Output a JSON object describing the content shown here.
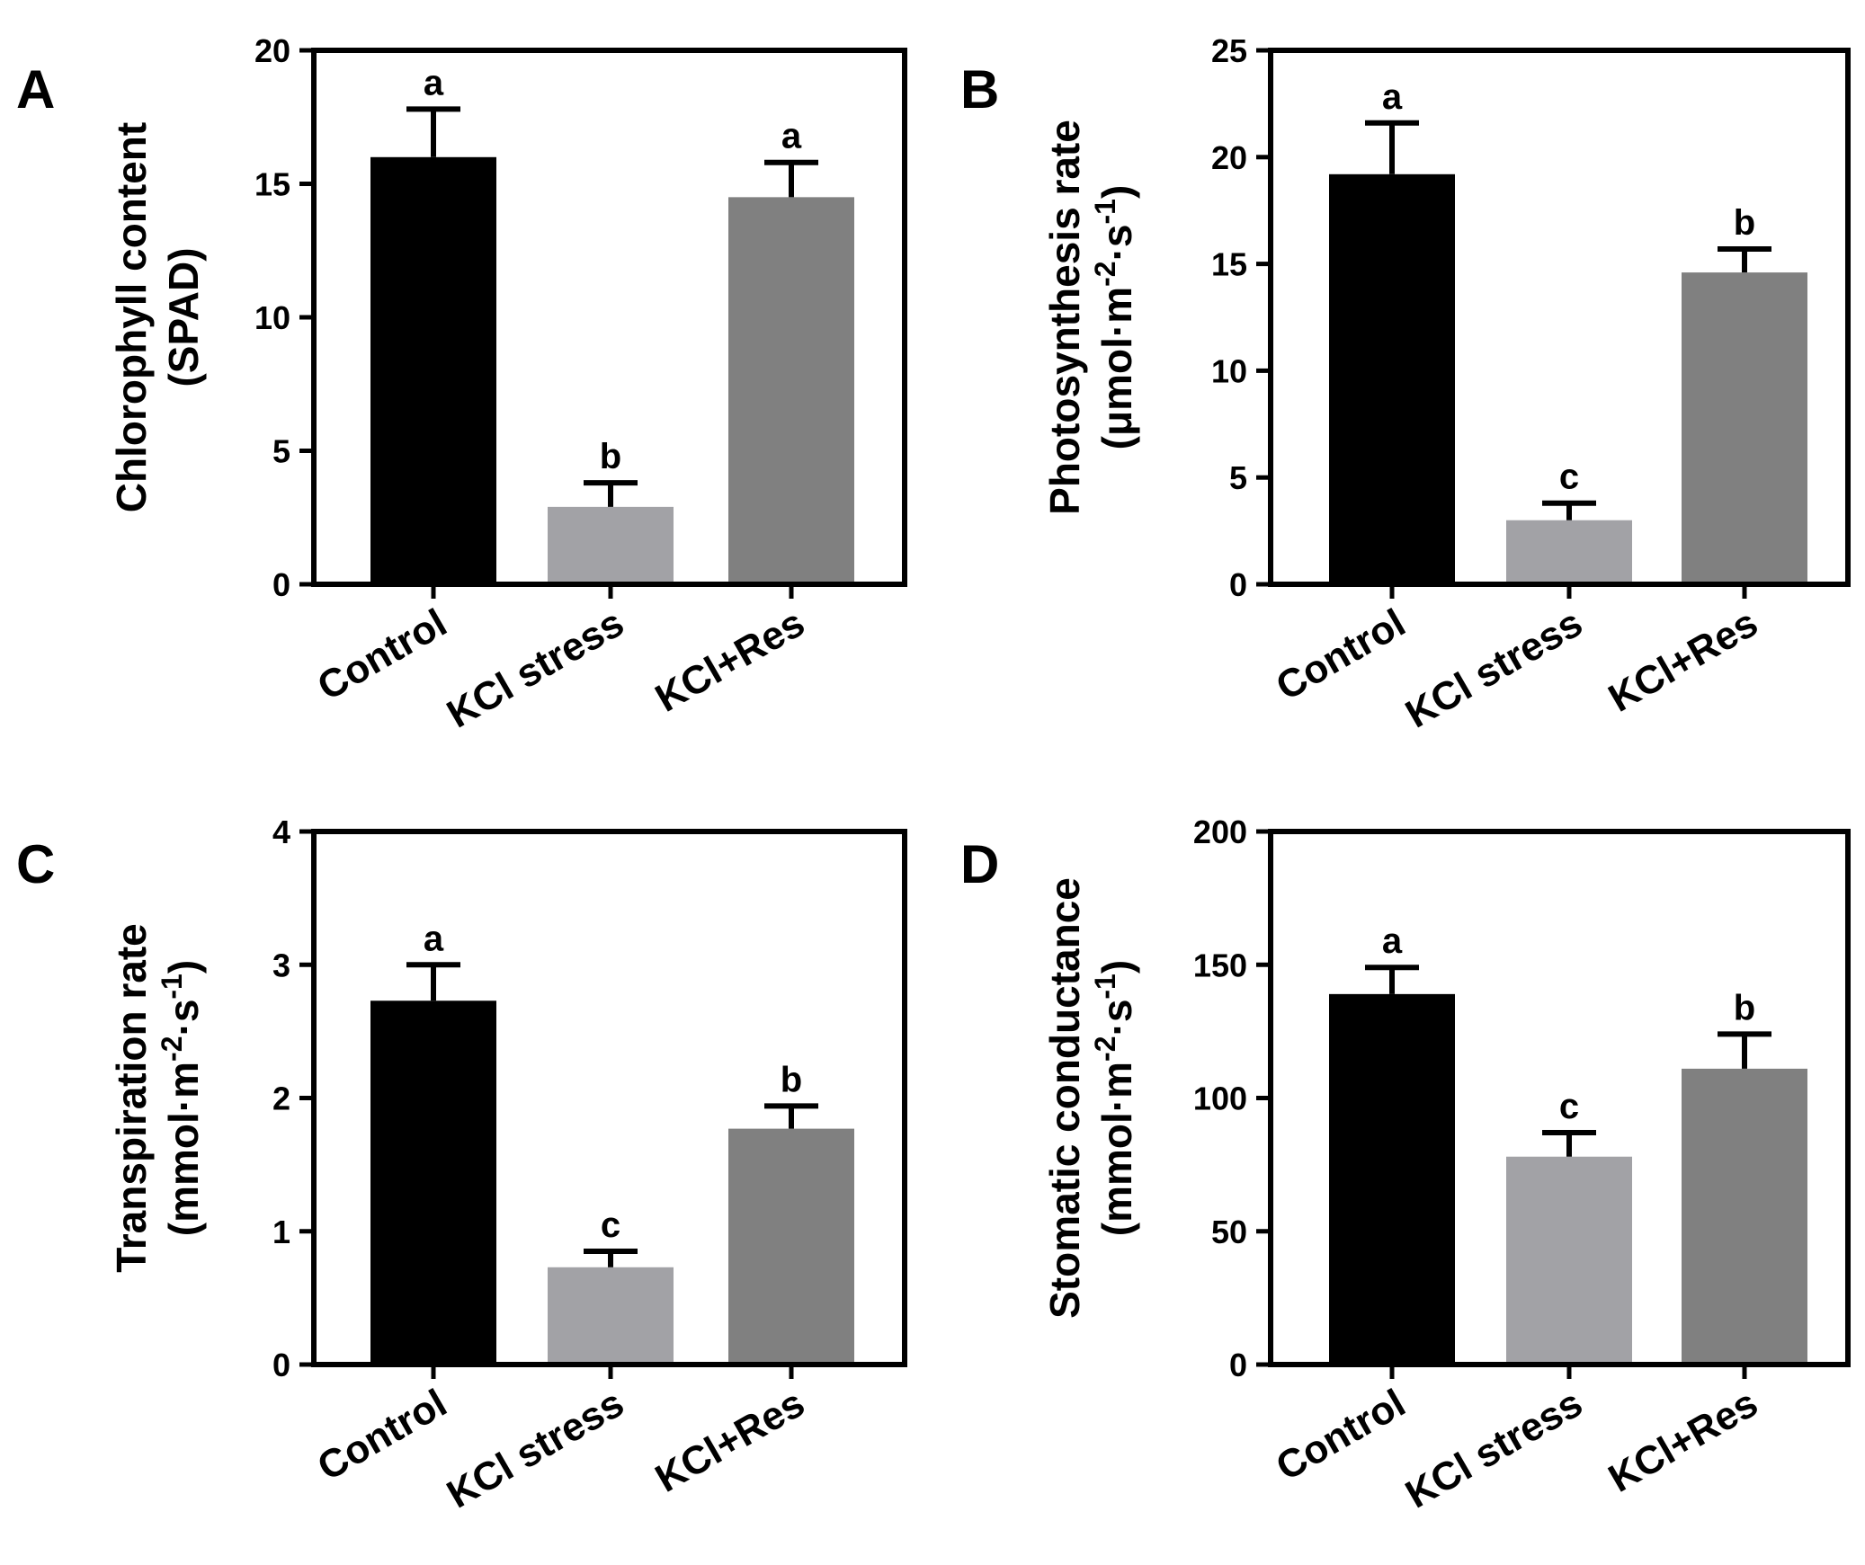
{
  "figure": {
    "colors": {
      "Control": "#000000",
      "KCl stress": "#a2a2a6",
      "KCl+Res": "#808080"
    }
  },
  "chart_data": [
    {
      "panel": "A",
      "type": "bar",
      "categories": [
        "Control",
        "KCl stress",
        "KCl+Res"
      ],
      "values": [
        16.0,
        2.9,
        14.5
      ],
      "errors": [
        1.8,
        0.9,
        1.3
      ],
      "significance": [
        "a",
        "b",
        "a"
      ],
      "ylabel_lines": [
        "Chlorophyll content",
        "(SPAD)"
      ],
      "ylim": [
        0,
        20
      ],
      "yticks": [
        0,
        5,
        10,
        15,
        20
      ],
      "xlabel": ""
    },
    {
      "panel": "B",
      "type": "bar",
      "categories": [
        "Control",
        "KCl stress",
        "KCl+Res"
      ],
      "values": [
        19.2,
        3.0,
        14.6
      ],
      "errors": [
        2.4,
        0.8,
        1.1
      ],
      "significance": [
        "a",
        "c",
        "b"
      ],
      "ylabel_lines": [
        "Photosynthesis rate",
        "(μmol·m⁻²·s⁻¹)"
      ],
      "ylim": [
        0,
        25
      ],
      "yticks": [
        0,
        5,
        10,
        15,
        20,
        25
      ],
      "xlabel": ""
    },
    {
      "panel": "C",
      "type": "bar",
      "categories": [
        "Control",
        "KCl stress",
        "KCl+Res"
      ],
      "values": [
        2.73,
        0.73,
        1.77
      ],
      "errors": [
        0.27,
        0.12,
        0.17
      ],
      "significance": [
        "a",
        "c",
        "b"
      ],
      "ylabel_lines": [
        "Transpiration rate",
        "(mmol·m⁻²·s⁻¹)"
      ],
      "ylim": [
        0,
        4
      ],
      "yticks": [
        0,
        1,
        2,
        3,
        4
      ],
      "xlabel": ""
    },
    {
      "panel": "D",
      "type": "bar",
      "categories": [
        "Control",
        "KCl stress",
        "KCl+Res"
      ],
      "values": [
        139,
        78,
        111
      ],
      "errors": [
        10,
        9,
        13
      ],
      "significance": [
        "a",
        "c",
        "b"
      ],
      "ylabel_lines": [
        "Stomatic conductance",
        "(mmol·m⁻²·s⁻¹)"
      ],
      "ylim": [
        0,
        200
      ],
      "yticks": [
        0,
        50,
        100,
        150,
        200
      ],
      "xlabel": ""
    }
  ]
}
